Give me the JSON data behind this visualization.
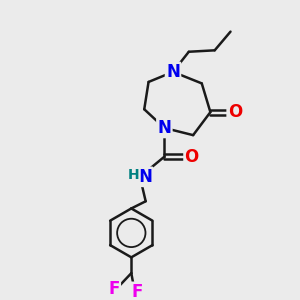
{
  "background_color": "#ebebeb",
  "bond_color": "#1a1a1a",
  "bond_width": 1.8,
  "atom_colors": {
    "N": "#0000ee",
    "O": "#ee0000",
    "F": "#ee00ee",
    "H": "#008080",
    "C": "#1a1a1a"
  },
  "figsize": [
    3.0,
    3.0
  ],
  "dpi": 100,
  "xlim": [
    0,
    10
  ],
  "ylim": [
    0,
    10
  ],
  "font_size_atoms": 12,
  "font_size_h": 10
}
